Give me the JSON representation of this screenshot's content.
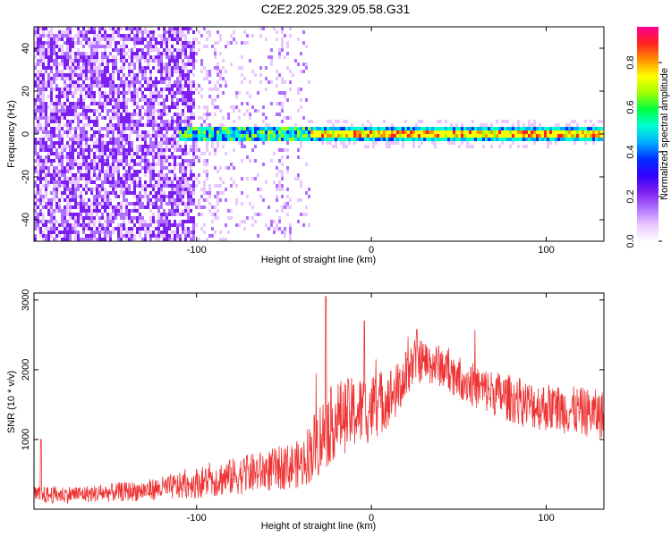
{
  "figure_title": "C2E2.2025.329.05.58.G31",
  "chart_data": [
    {
      "type": "heatmap",
      "xlabel": "Height of straight line (km)",
      "ylabel": "Frequency (Hz)",
      "xlim": [
        -193,
        133
      ],
      "ylim": [
        -50,
        50
      ],
      "xticks": [
        -100,
        0,
        100
      ],
      "yticks": [
        -40,
        -20,
        0,
        20,
        40
      ],
      "colorbar": {
        "label": "Normalized spectral amplitude",
        "range": [
          0,
          0.96
        ],
        "ticks": [
          0.0,
          0.2,
          0.4,
          0.6,
          0.8
        ],
        "colormap": [
          "#ffffff",
          "#e8c8ff",
          "#b070ff",
          "#7d1ff0",
          "#3000ff",
          "#0030ff",
          "#00b0ff",
          "#00ffd0",
          "#00ff40",
          "#a0ff00",
          "#ffff00",
          "#ff9000",
          "#ff2020",
          "#ff0090"
        ]
      },
      "features": {
        "noise_region_x": [
          -193,
          -100
        ],
        "faint_noise_region_x": [
          -100,
          -35
        ],
        "signal_band_center_hz": 0,
        "signal_band_halfwidth_hz": 3,
        "signal_start_x": -110,
        "peak_region_x": [
          -30,
          130
        ]
      }
    },
    {
      "type": "line",
      "xlabel": "Height of straight line (km)",
      "ylabel": "SNR (10 * v/v)",
      "xlim": [
        -193,
        133
      ],
      "ylim": [
        0,
        3100
      ],
      "xticks": [
        -100,
        0,
        100
      ],
      "yticks": [
        1000,
        2000,
        3000
      ],
      "color": "#ee3333",
      "envelope": [
        {
          "x": -193,
          "mean": 200,
          "spread": 250
        },
        {
          "x": -160,
          "mean": 220,
          "spread": 250
        },
        {
          "x": -130,
          "mean": 270,
          "spread": 300
        },
        {
          "x": -110,
          "mean": 330,
          "spread": 380
        },
        {
          "x": -90,
          "mean": 420,
          "spread": 500
        },
        {
          "x": -60,
          "mean": 550,
          "spread": 600
        },
        {
          "x": -40,
          "mean": 650,
          "spread": 700
        },
        {
          "x": -30,
          "mean": 1000,
          "spread": 1100
        },
        {
          "x": -20,
          "mean": 1300,
          "spread": 1100
        },
        {
          "x": 0,
          "mean": 1450,
          "spread": 1000
        },
        {
          "x": 15,
          "mean": 1700,
          "spread": 800
        },
        {
          "x": 25,
          "mean": 2150,
          "spread": 650
        },
        {
          "x": 40,
          "mean": 2050,
          "spread": 600
        },
        {
          "x": 60,
          "mean": 1750,
          "spread": 650
        },
        {
          "x": 90,
          "mean": 1500,
          "spread": 700
        },
        {
          "x": 120,
          "mean": 1400,
          "spread": 700
        },
        {
          "x": 133,
          "mean": 1350,
          "spread": 700
        }
      ],
      "peaks": [
        {
          "x": -26,
          "y": 3050
        },
        {
          "x": -4,
          "y": 2700
        },
        {
          "x": 26,
          "y": 2580
        }
      ],
      "spike_at_start": {
        "x": -189,
        "y": 1000
      }
    }
  ]
}
